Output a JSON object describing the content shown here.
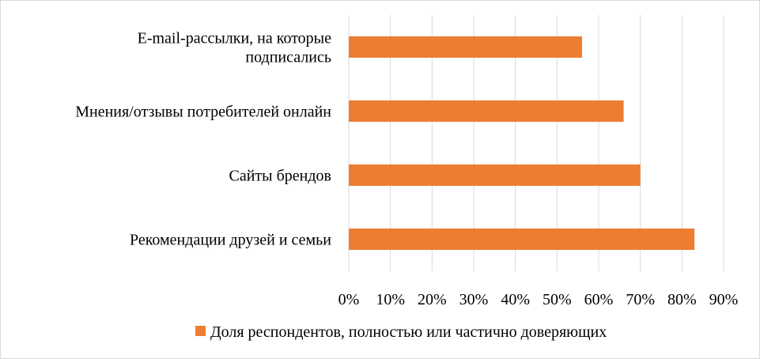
{
  "chart_data": {
    "type": "bar",
    "orientation": "horizontal",
    "title": "",
    "xlabel": "",
    "ylabel": "",
    "categories": [
      [
        "E-mail-рассылки, на которые",
        "подписались"
      ],
      [
        "Мнения/отзывы потребителей онлайн"
      ],
      [
        "Сайты брендов"
      ],
      [
        "Рекомендации друзей и семьи"
      ]
    ],
    "series": [
      {
        "name": "Доля респондентов, полностью или частично доверяющих",
        "values": [
          56,
          66,
          70,
          83
        ],
        "color": "#ed7d31"
      }
    ],
    "xlim": [
      0,
      90
    ],
    "xticks": [
      "0%",
      "10%",
      "20%",
      "30%",
      "40%",
      "50%",
      "60%",
      "70%",
      "80%",
      "90%"
    ],
    "grid": "vertical",
    "grid_color": "#d9d9d9",
    "legend": "bottom"
  }
}
